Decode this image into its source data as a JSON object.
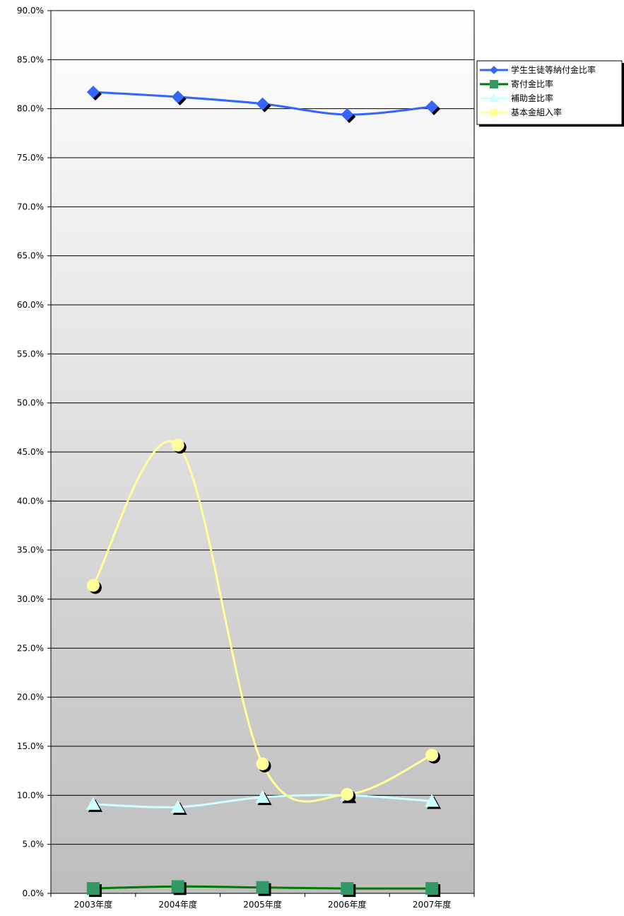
{
  "chart_data": {
    "type": "line",
    "title": "",
    "xlabel": "",
    "ylabel": "",
    "categories": [
      "2003年度",
      "2004年度",
      "2005年度",
      "2006年度",
      "2007年度"
    ],
    "ylim": [
      0,
      90
    ],
    "ytick_step": 5,
    "ytick_format": "percent-1dp",
    "grid": true,
    "legend_position": "top-right",
    "series": [
      {
        "name": "学生生徒等納付金比率",
        "values": [
          81.7,
          81.2,
          80.5,
          79.4,
          80.2
        ],
        "color": "#3366ff",
        "marker": "diamond"
      },
      {
        "name": "寄付金比率",
        "values": [
          0.5,
          0.7,
          0.6,
          0.5,
          0.5
        ],
        "color": "#007a00",
        "marker_color": "#339966",
        "marker": "square"
      },
      {
        "name": "補助金比率",
        "values": [
          9.1,
          8.8,
          9.8,
          10.0,
          9.4
        ],
        "color": "#ccffff",
        "marker": "triangle"
      },
      {
        "name": "基本金組入率",
        "values": [
          31.4,
          45.7,
          13.2,
          10.1,
          14.1
        ],
        "color": "#ffff99",
        "marker": "circle"
      }
    ]
  }
}
